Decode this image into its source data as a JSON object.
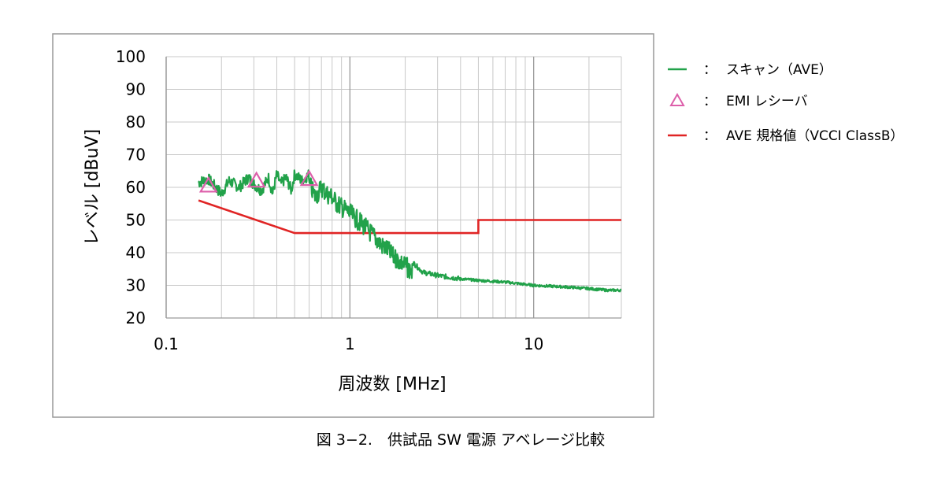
{
  "caption": "図 3−2.　供試品 SW 電源 アベレージ比較",
  "colors": {
    "scan": "#22a24a",
    "emi": "#dd5faa",
    "limit": "#e02424",
    "grid": "#c8c8c8",
    "grid_decade": "#9a9a9a",
    "frame": "#999999"
  },
  "legend": [
    {
      "key": "scan",
      "marker": "line",
      "sep": "：",
      "label": "スキャン（AVE）"
    },
    {
      "key": "emi",
      "marker": "triangle",
      "sep": "：",
      "label": "EMI レシーバ"
    },
    {
      "key": "limit",
      "marker": "line",
      "sep": "：",
      "label": "AVE 規格値（VCCI ClassB）"
    }
  ],
  "chart_data": {
    "type": "line",
    "xscale": "log",
    "xlim": [
      0.1,
      30
    ],
    "ylim": [
      20,
      100
    ],
    "xlabel": "周波数 [MHz]",
    "ylabel": "レベル [dBuV]",
    "x_ticks": [
      0.1,
      1,
      10
    ],
    "x_tick_labels": [
      "0.1",
      "1",
      "10"
    ],
    "y_ticks": [
      20,
      30,
      40,
      50,
      60,
      70,
      80,
      90,
      100
    ],
    "grid": true,
    "legend_position": "right",
    "series": [
      {
        "name": "スキャン（AVE）",
        "type": "line",
        "color": "#22a24a",
        "x": [
          0.15,
          0.17,
          0.2,
          0.22,
          0.25,
          0.28,
          0.3,
          0.33,
          0.36,
          0.38,
          0.4,
          0.42,
          0.45,
          0.48,
          0.5,
          0.55,
          0.6,
          0.65,
          0.7,
          0.75,
          0.8,
          0.85,
          0.9,
          0.95,
          1.0,
          1.1,
          1.2,
          1.3,
          1.4,
          1.5,
          1.6,
          1.7,
          1.8,
          2.0,
          2.2,
          2.5,
          3,
          4,
          5,
          7,
          10,
          15,
          20,
          25,
          30
        ],
        "y": [
          61.5,
          62.5,
          58,
          62,
          60,
          63,
          61,
          59,
          63,
          58,
          64,
          61,
          63,
          59,
          64,
          62,
          64,
          60,
          63,
          61,
          60,
          58,
          57,
          56,
          55,
          53,
          51,
          49,
          47,
          45,
          44,
          42,
          41,
          39,
          37,
          34,
          33,
          32,
          31.5,
          31,
          30,
          29.5,
          29,
          28.5,
          28.5
        ]
      },
      {
        "name": "EMI レシーバ",
        "type": "scatter",
        "marker": "triangle",
        "color": "#dd5faa",
        "x": [
          0.17,
          0.31,
          0.6
        ],
        "y": [
          60.5,
          62,
          62.5
        ]
      },
      {
        "name": "AVE 規格値（VCCI ClassB）",
        "type": "line",
        "color": "#e02424",
        "x": [
          0.15,
          0.5,
          5,
          5,
          30
        ],
        "y": [
          56,
          46,
          46,
          50,
          50
        ]
      }
    ]
  }
}
